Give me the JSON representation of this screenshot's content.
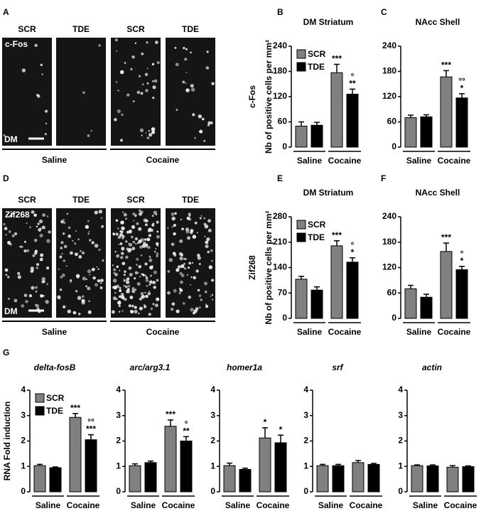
{
  "images": [
    {
      "letter": "A",
      "columns": [
        "SCR",
        "TDE",
        "SCR",
        "TDE"
      ],
      "marker": "c-Fos",
      "region": "DM",
      "groups": [
        "Saline",
        "Cocaine"
      ]
    },
    {
      "letter": "D",
      "columns": [
        "SCR",
        "TDE",
        "SCR",
        "TDE"
      ],
      "marker": "Zif268",
      "region": "DM",
      "groups": [
        "Saline",
        "Cocaine"
      ]
    }
  ],
  "section_letter": "G",
  "chart_data": [
    {
      "type": "bar",
      "letter": "B",
      "row_label": "c-Fos",
      "title": "DM Striatum",
      "ylabel": "Nb of positive cells per mm²",
      "groups": [
        "Saline",
        "Cocaine"
      ],
      "legend": "upper left",
      "series": [
        {
          "name": "SCR",
          "color": "#808080",
          "values": [
            50,
            177
          ],
          "errors": [
            10,
            20
          ],
          "annotations": [
            null,
            [
              "***"
            ]
          ]
        },
        {
          "name": "TDE",
          "color": "#000000",
          "values": [
            52,
            126
          ],
          "errors": [
            7,
            12
          ],
          "annotations": [
            null,
            [
              "°",
              "**"
            ]
          ]
        }
      ],
      "ylim": [
        0,
        240
      ],
      "yticks": [
        0,
        60,
        120,
        180,
        240
      ]
    },
    {
      "type": "bar",
      "letter": "C",
      "title": "NAcc Shell",
      "groups": [
        "Saline",
        "Cocaine"
      ],
      "series": [
        {
          "color": "#808080",
          "values": [
            70,
            167
          ],
          "errors": [
            6,
            15
          ],
          "annotations": [
            null,
            [
              "***"
            ]
          ]
        },
        {
          "color": "#000000",
          "values": [
            72,
            117
          ],
          "errors": [
            5,
            10
          ],
          "annotations": [
            null,
            [
              "°°",
              "*"
            ]
          ]
        }
      ],
      "ylim": [
        0,
        240
      ],
      "yticks": [
        0,
        60,
        120,
        180,
        240
      ]
    },
    {
      "type": "bar",
      "letter": "E",
      "row_label": "Zif268",
      "title": "DM Striatum",
      "ylabel": "Nb of positive cells per mm²",
      "groups": [
        "Saline",
        "Cocaine"
      ],
      "legend": "upper left",
      "series": [
        {
          "name": "SCR",
          "color": "#808080",
          "values": [
            108,
            200
          ],
          "errors": [
            8,
            14
          ],
          "annotations": [
            null,
            [
              "***"
            ]
          ]
        },
        {
          "name": "TDE",
          "color": "#000000",
          "values": [
            78,
            155
          ],
          "errors": [
            9,
            12
          ],
          "annotations": [
            null,
            [
              "°",
              "*"
            ]
          ]
        }
      ],
      "ylim": [
        0,
        280
      ],
      "yticks": [
        0,
        70,
        140,
        210,
        280
      ]
    },
    {
      "type": "bar",
      "letter": "F",
      "title": "NAcc Shell",
      "groups": [
        "Saline",
        "Cocaine"
      ],
      "series": [
        {
          "color": "#808080",
          "values": [
            70,
            158
          ],
          "errors": [
            8,
            20
          ],
          "annotations": [
            null,
            [
              "***"
            ]
          ]
        },
        {
          "color": "#000000",
          "values": [
            50,
            115
          ],
          "errors": [
            7,
            8
          ],
          "annotations": [
            null,
            [
              "°",
              "*"
            ]
          ]
        }
      ],
      "ylim": [
        0,
        240
      ],
      "yticks": [
        0,
        60,
        120,
        180,
        240
      ]
    },
    {
      "type": "bar",
      "title": "delta-fosB",
      "ylabel": "RNA Fold induction",
      "groups": [
        "Saline",
        "Cocaine"
      ],
      "legend": "upper left",
      "series": [
        {
          "name": "SCR",
          "color": "#808080",
          "values": [
            1.03,
            2.93
          ],
          "errors": [
            0.05,
            0.15
          ],
          "annotations": [
            null,
            [
              "***"
            ]
          ]
        },
        {
          "name": "TDE",
          "color": "#000000",
          "values": [
            0.95,
            2.05
          ],
          "errors": [
            0.03,
            0.2
          ],
          "annotations": [
            null,
            [
              "°°",
              "***"
            ]
          ]
        }
      ],
      "ylim": [
        0,
        4
      ],
      "yticks": [
        0,
        1,
        2,
        3,
        4
      ]
    },
    {
      "type": "bar",
      "title": "arc/arg3.1",
      "groups": [
        "Saline",
        "Cocaine"
      ],
      "series": [
        {
          "color": "#808080",
          "values": [
            1.03,
            2.58
          ],
          "errors": [
            0.07,
            0.25
          ],
          "annotations": [
            null,
            [
              "***"
            ]
          ]
        },
        {
          "color": "#000000",
          "values": [
            1.15,
            2.0
          ],
          "errors": [
            0.06,
            0.17
          ],
          "annotations": [
            null,
            [
              "°",
              "**"
            ]
          ]
        }
      ],
      "ylim": [
        0,
        4
      ],
      "yticks": [
        0,
        1,
        2,
        3,
        4
      ]
    },
    {
      "type": "bar",
      "title": "homer1a",
      "groups": [
        "Saline",
        "Cocaine"
      ],
      "series": [
        {
          "color": "#808080",
          "values": [
            1.03,
            2.12
          ],
          "errors": [
            0.1,
            0.4
          ],
          "annotations": [
            null,
            [
              "*"
            ]
          ]
        },
        {
          "color": "#000000",
          "values": [
            0.88,
            1.93
          ],
          "errors": [
            0.05,
            0.3
          ],
          "annotations": [
            null,
            [
              "*"
            ]
          ]
        }
      ],
      "ylim": [
        0,
        4
      ],
      "yticks": [
        0,
        1,
        2,
        3,
        4
      ]
    },
    {
      "type": "bar",
      "title": "srf",
      "groups": [
        "Saline",
        "Cocaine"
      ],
      "series": [
        {
          "color": "#808080",
          "values": [
            1.03,
            1.15
          ],
          "errors": [
            0.05,
            0.08
          ]
        },
        {
          "color": "#000000",
          "values": [
            1.03,
            1.08
          ],
          "errors": [
            0.05,
            0.04
          ]
        }
      ],
      "ylim": [
        0,
        4
      ],
      "yticks": [
        0,
        1,
        2,
        3,
        4
      ]
    },
    {
      "type": "bar",
      "title": "actin",
      "groups": [
        "Saline",
        "Cocaine"
      ],
      "series": [
        {
          "color": "#808080",
          "values": [
            1.03,
            0.97
          ],
          "errors": [
            0.03,
            0.06
          ]
        },
        {
          "color": "#000000",
          "values": [
            1.02,
            0.99
          ],
          "errors": [
            0.04,
            0.03
          ]
        }
      ],
      "ylim": [
        0,
        4
      ],
      "yticks": [
        0,
        1,
        2,
        3,
        4
      ]
    }
  ]
}
